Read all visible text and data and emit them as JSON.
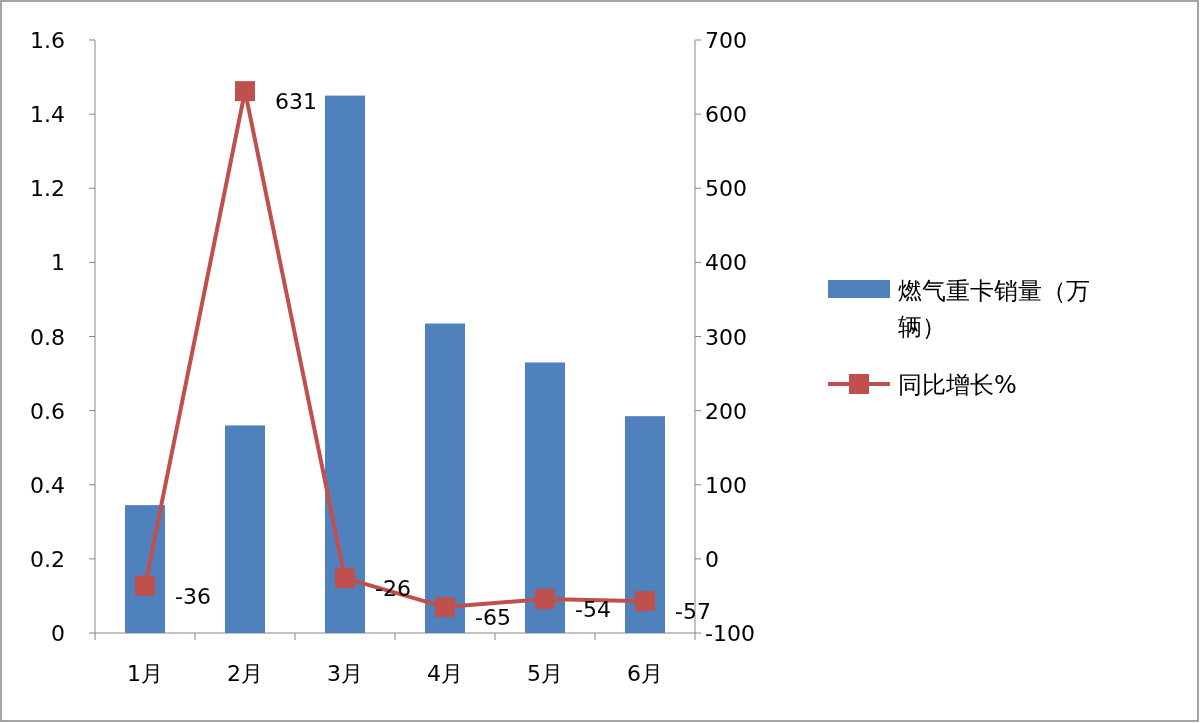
{
  "chart_data": {
    "type": "bar",
    "categories": [
      "1月",
      "2月",
      "3月",
      "4月",
      "5月",
      "6月"
    ],
    "series": [
      {
        "name": "燃气重卡销量（万辆）",
        "color": "#4f81bd",
        "values": [
          0.345,
          0.56,
          1.45,
          0.835,
          0.73,
          0.585
        ]
      },
      {
        "name": "同比增长%",
        "type": "line",
        "axis": "y2",
        "color": "#c0504d",
        "marker": "square",
        "values": [
          -36,
          631,
          -26,
          -65,
          -54,
          -57
        ],
        "value_labels": [
          "-36",
          "631",
          "-26",
          "-65",
          "-54",
          "-57"
        ]
      }
    ],
    "ylim": [
      0,
      1.6
    ],
    "yticks": [
      0,
      0.2,
      0.4,
      0.6,
      0.8,
      1,
      1.2,
      1.4,
      1.6
    ],
    "y2lim": [
      -100,
      700
    ],
    "y2ticks": [
      -100,
      0,
      100,
      200,
      300,
      400,
      500,
      600,
      700
    ],
    "legend": "right",
    "grid": false
  }
}
